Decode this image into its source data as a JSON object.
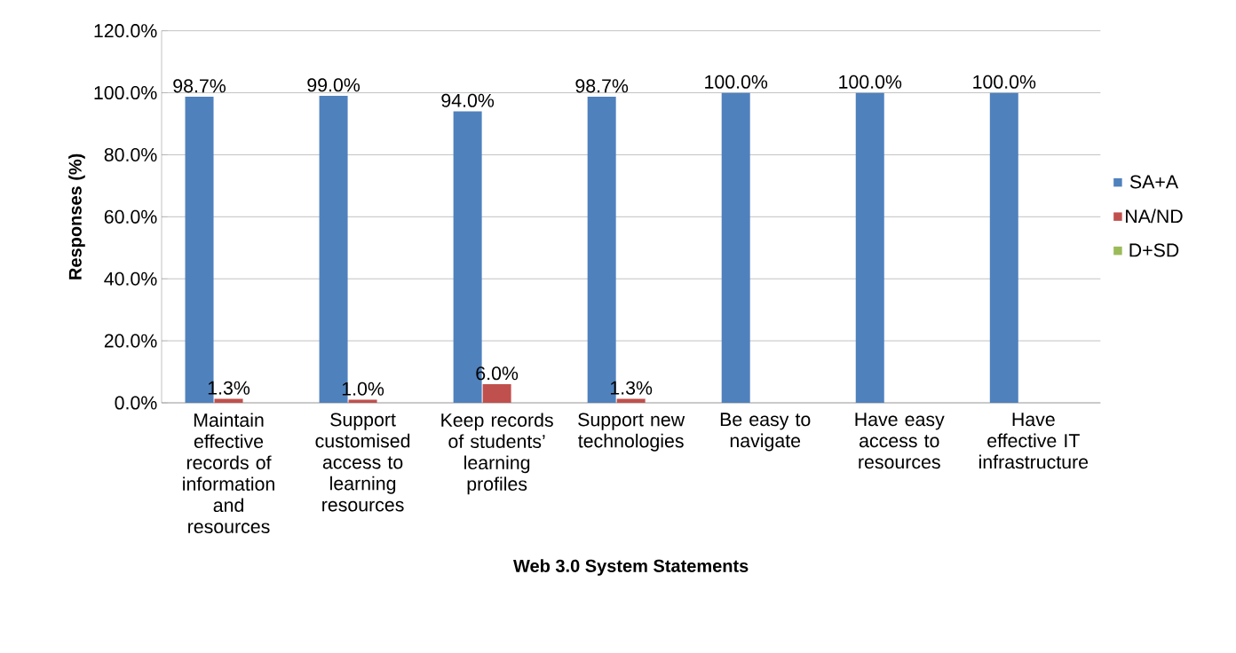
{
  "chart_data": {
    "type": "bar",
    "xlabel": "Web 3.0 System Statements",
    "ylabel": "Responses (%)",
    "categories": [
      "Maintain effective records of information and resources",
      "Support customised access to learning resources",
      "Keep records of students’ learning profiles",
      "Support new technologies",
      "Be easy to navigate",
      "Have easy access to resources",
      "Have effective IT infrastructure"
    ],
    "series": [
      {
        "name": "SA+A",
        "color": "#4f81bd",
        "values": [
          98.7,
          99.0,
          94.0,
          98.7,
          100.0,
          100.0,
          100.0
        ],
        "value_labels": [
          "98.7%",
          "99.0%",
          "94.0%",
          "98.7%",
          "100.0%",
          "100.0%",
          "100.0%"
        ]
      },
      {
        "name": "NA/ND",
        "color": "#c0504d",
        "values": [
          1.3,
          1.0,
          6.0,
          1.3,
          0,
          0,
          0
        ],
        "value_labels": [
          "1.3%",
          "1.0%",
          "6.0%",
          "1.3%",
          null,
          null,
          null
        ]
      },
      {
        "name": "D+SD",
        "color": "#9bbb59",
        "values": [
          0,
          0,
          0,
          0,
          0,
          0,
          0
        ]
      }
    ],
    "ylim": [
      0,
      120
    ],
    "yticks": [
      {
        "value": 0,
        "label": "0.0%"
      },
      {
        "value": 20,
        "label": "20.0%"
      },
      {
        "value": 40,
        "label": "40.0%"
      },
      {
        "value": 60,
        "label": "60.0%"
      },
      {
        "value": 80,
        "label": "80.0%"
      },
      {
        "value": 100,
        "label": "100.0%"
      },
      {
        "value": 120,
        "label": "120.0%"
      }
    ],
    "grid": "y",
    "legend": "right"
  }
}
